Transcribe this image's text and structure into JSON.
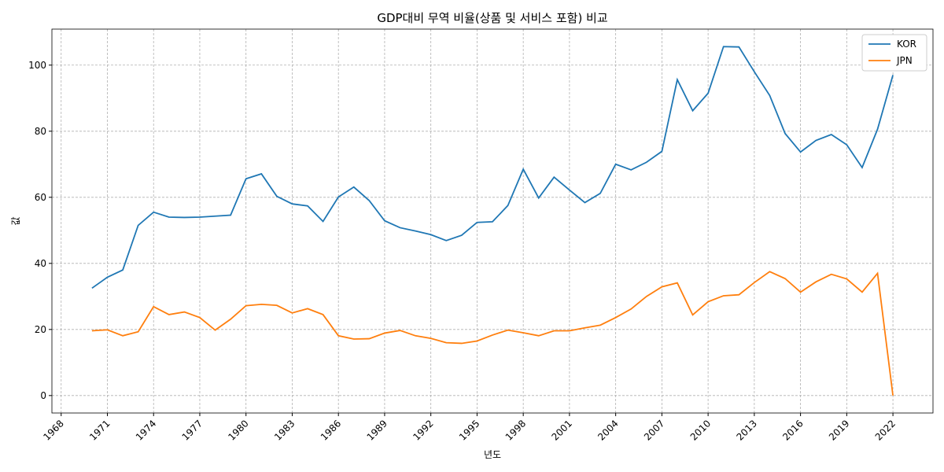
{
  "chart_data": {
    "type": "line",
    "title": "GDP대비 무역 비율(상품 및 서비스 포함) 비교",
    "xlabel": "년도",
    "ylabel": "값",
    "x": [
      1970,
      1971,
      1972,
      1973,
      1974,
      1975,
      1976,
      1977,
      1978,
      1979,
      1980,
      1981,
      1982,
      1983,
      1984,
      1985,
      1986,
      1987,
      1988,
      1989,
      1990,
      1991,
      1992,
      1993,
      1994,
      1995,
      1996,
      1997,
      1998,
      1999,
      2000,
      2001,
      2002,
      2003,
      2004,
      2005,
      2006,
      2007,
      2008,
      2009,
      2010,
      2011,
      2012,
      2013,
      2014,
      2015,
      2016,
      2017,
      2018,
      2019,
      2020,
      2021,
      2022
    ],
    "series": [
      {
        "name": "KOR",
        "color": "#1f77b4",
        "values": [
          32.5,
          35.8,
          38,
          51.5,
          55.5,
          54,
          53.9,
          54,
          54.3,
          54.6,
          65.6,
          67.1,
          60.3,
          58,
          57.4,
          52.7,
          60.1,
          63.1,
          59,
          52.9,
          50.8,
          49.8,
          48.7,
          46.9,
          48.5,
          52.4,
          52.6,
          57.5,
          68.5,
          59.8,
          66.1,
          62.2,
          58.4,
          61.2,
          70,
          68.3,
          70.6,
          73.9,
          95.6,
          86.2,
          91.5,
          105.6,
          105.5,
          98,
          90.8,
          79.3,
          73.7,
          77.2,
          79,
          75.9,
          69,
          80.6,
          97
        ]
      },
      {
        "name": "JPN",
        "color": "#ff7f0e",
        "values": [
          19.6,
          19.9,
          18.1,
          19.3,
          26.9,
          24.5,
          25.3,
          23.6,
          19.8,
          23.1,
          27.2,
          27.6,
          27.3,
          25,
          26.3,
          24.5,
          18.1,
          17.1,
          17.2,
          18.9,
          19.7,
          18.1,
          17.3,
          16,
          15.8,
          16.5,
          18.3,
          19.8,
          19,
          18.1,
          19.6,
          19.6,
          20.5,
          21.3,
          23.6,
          26.2,
          30,
          32.9,
          34.1,
          24.4,
          28.4,
          30.2,
          30.5,
          34.2,
          37.5,
          35.4,
          31.3,
          34.4,
          36.7,
          35.3,
          31.3,
          37,
          0
        ]
      }
    ],
    "xlim": [
      1967.4,
      2024.6
    ],
    "xticks": [
      1968,
      1971,
      1974,
      1977,
      1980,
      1983,
      1986,
      1989,
      1992,
      1995,
      1998,
      2001,
      2004,
      2007,
      2010,
      2013,
      2016,
      2019,
      2022
    ],
    "ylim": [
      -5.28,
      110.9
    ],
    "yticks": [
      0,
      20,
      40,
      60,
      80,
      100
    ],
    "grid": true,
    "legend": "upper right"
  }
}
